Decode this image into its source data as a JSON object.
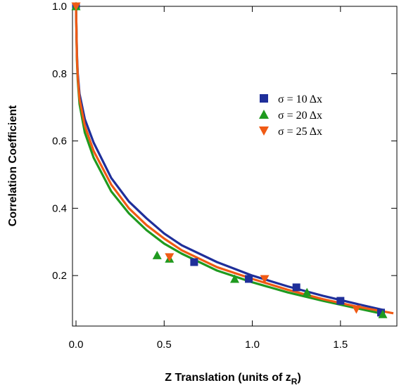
{
  "chart_data": {
    "type": "scatter",
    "xlabel": "Z Translation (units of z",
    "xlabel_sub": "R",
    "xlabel_close": ")",
    "ylabel": "Correlation Coefficient",
    "xlim": [
      -0.02,
      1.82
    ],
    "ylim": [
      0.05,
      1.0
    ],
    "x_ticks": [
      0.0,
      0.5,
      1.0,
      1.5
    ],
    "x_tick_labels": [
      "0.0",
      "0.5",
      "1.0",
      "1.5"
    ],
    "y_ticks": [
      0.2,
      0.4,
      0.6,
      0.8,
      1.0
    ],
    "y_tick_labels": [
      "0.2",
      "0.4",
      "0.6",
      "0.8",
      "1.0"
    ],
    "legend_position": "right",
    "series": [
      {
        "name": "σ = 10 Δx",
        "marker": "square",
        "color": "#1f2f9a",
        "points": [
          [
            0.0,
            1.0
          ],
          [
            0.67,
            0.24
          ],
          [
            0.98,
            0.19
          ],
          [
            1.25,
            0.165
          ],
          [
            1.5,
            0.125
          ],
          [
            1.73,
            0.09
          ]
        ],
        "fit": [
          [
            0.0,
            1.0
          ],
          [
            0.005,
            0.86
          ],
          [
            0.01,
            0.8
          ],
          [
            0.02,
            0.74
          ],
          [
            0.05,
            0.665
          ],
          [
            0.1,
            0.595
          ],
          [
            0.2,
            0.49
          ],
          [
            0.3,
            0.42
          ],
          [
            0.4,
            0.37
          ],
          [
            0.5,
            0.325
          ],
          [
            0.6,
            0.29
          ],
          [
            0.8,
            0.24
          ],
          [
            1.0,
            0.2
          ],
          [
            1.2,
            0.168
          ],
          [
            1.4,
            0.14
          ],
          [
            1.6,
            0.115
          ],
          [
            1.75,
            0.097
          ]
        ]
      },
      {
        "name": "σ = 20 Δx",
        "marker": "triangle-up",
        "color": "#1f9a1f",
        "points": [
          [
            0.0,
            1.0
          ],
          [
            0.46,
            0.26
          ],
          [
            0.53,
            0.25
          ],
          [
            0.9,
            0.19
          ],
          [
            1.31,
            0.15
          ],
          [
            1.74,
            0.085
          ]
        ],
        "fit": [
          [
            0.0,
            1.0
          ],
          [
            0.005,
            0.84
          ],
          [
            0.01,
            0.78
          ],
          [
            0.02,
            0.71
          ],
          [
            0.05,
            0.625
          ],
          [
            0.1,
            0.55
          ],
          [
            0.2,
            0.45
          ],
          [
            0.3,
            0.385
          ],
          [
            0.4,
            0.335
          ],
          [
            0.5,
            0.295
          ],
          [
            0.6,
            0.265
          ],
          [
            0.8,
            0.215
          ],
          [
            1.0,
            0.18
          ],
          [
            1.2,
            0.15
          ],
          [
            1.4,
            0.125
          ],
          [
            1.6,
            0.102
          ],
          [
            1.75,
            0.085
          ]
        ]
      },
      {
        "name": "σ = 25 Δx",
        "marker": "triangle-down",
        "color": "#f05a14",
        "points": [
          [
            0.0,
            1.0
          ],
          [
            0.53,
            0.255
          ],
          [
            1.07,
            0.19
          ],
          [
            1.59,
            0.1
          ]
        ],
        "fit": [
          [
            0.0,
            1.0
          ],
          [
            0.005,
            0.85
          ],
          [
            0.01,
            0.79
          ],
          [
            0.02,
            0.725
          ],
          [
            0.05,
            0.645
          ],
          [
            0.1,
            0.57
          ],
          [
            0.2,
            0.47
          ],
          [
            0.3,
            0.4
          ],
          [
            0.4,
            0.35
          ],
          [
            0.5,
            0.31
          ],
          [
            0.6,
            0.275
          ],
          [
            0.8,
            0.225
          ],
          [
            1.0,
            0.19
          ],
          [
            1.2,
            0.158
          ],
          [
            1.4,
            0.13
          ],
          [
            1.6,
            0.107
          ],
          [
            1.8,
            0.088
          ]
        ]
      }
    ]
  }
}
